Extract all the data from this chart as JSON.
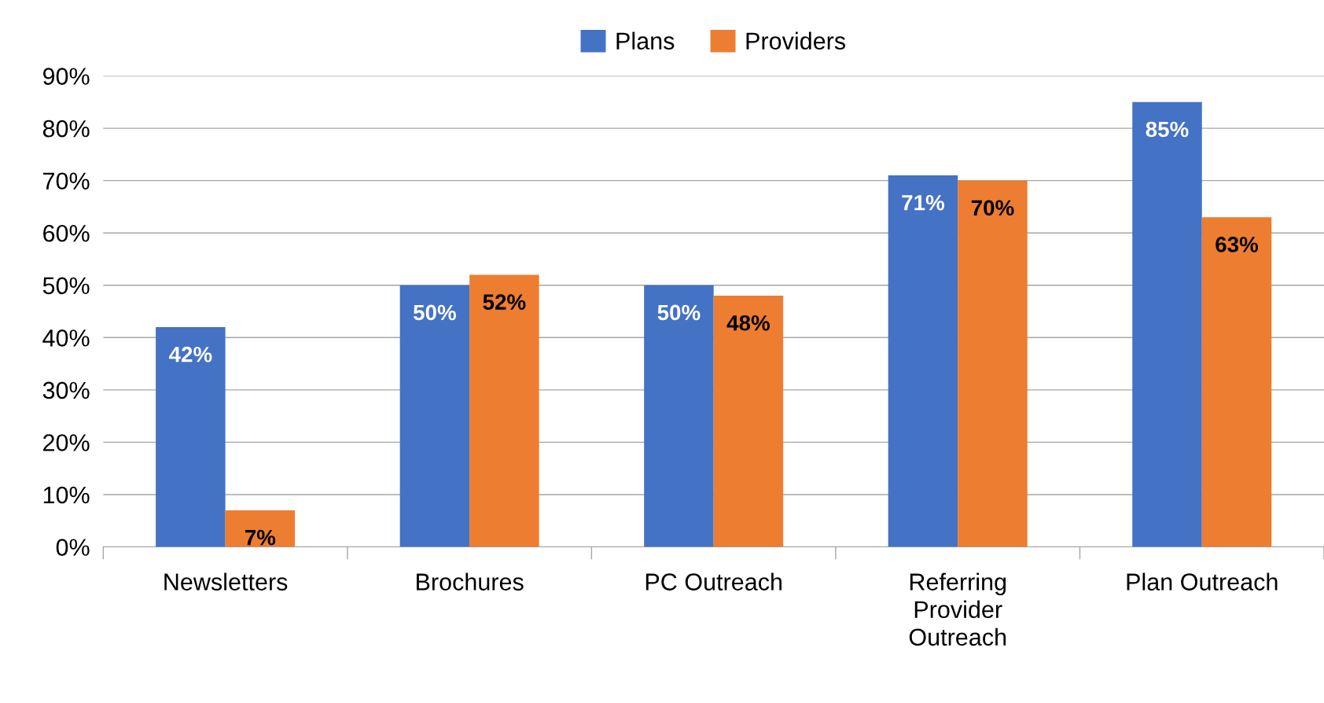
{
  "chart_data": {
    "type": "bar",
    "categories": [
      "Newsletters",
      "Brochures",
      "PC Outreach",
      "Referring Provider Outreach",
      "Plan Outreach"
    ],
    "series": [
      {
        "name": "Plans",
        "color": "#4472c4",
        "values": [
          42,
          50,
          50,
          71,
          85
        ],
        "value_labels": [
          "42%",
          "50%",
          "50%",
          "71%",
          "85%"
        ]
      },
      {
        "name": "Providers",
        "color": "#ed7d31",
        "values": [
          7,
          52,
          48,
          70,
          63
        ],
        "value_labels": [
          "7%",
          "52%",
          "48%",
          "70%",
          "63%"
        ]
      }
    ],
    "ylim": [
      0,
      90
    ],
    "yticks": [
      {
        "value": 0,
        "label": "0%"
      },
      {
        "value": 10,
        "label": "10%"
      },
      {
        "value": 20,
        "label": "20%"
      },
      {
        "value": 30,
        "label": "30%"
      },
      {
        "value": 40,
        "label": "40%"
      },
      {
        "value": 50,
        "label": "50%"
      },
      {
        "value": 60,
        "label": "60%"
      },
      {
        "value": 70,
        "label": "70%"
      },
      {
        "value": 80,
        "label": "80%"
      },
      {
        "value": 90,
        "label": "90%"
      }
    ],
    "grid": "y",
    "legend": "top"
  }
}
